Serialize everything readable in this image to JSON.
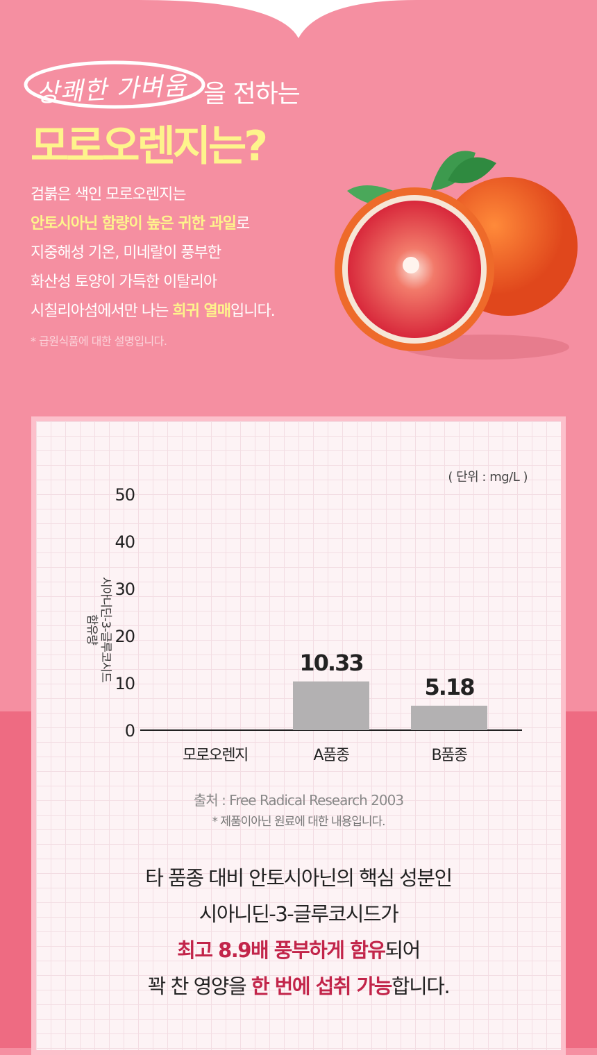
{
  "header": {
    "script_phrase": "상쾌한 가벼움",
    "subtitle_suffix": "을 전하는",
    "title": "모로오렌지는?"
  },
  "description": {
    "line1": "검붉은 색인 모로오렌지는",
    "line2_highlight": "안토시아닌 함량이 높은 귀한 과일",
    "line2_rest": "로",
    "line3": "지중해성 기온, 미네랄이 풍부한",
    "line4": "화산성 토양이 가득한 이탈리아",
    "line5_start": "시칠리아섬에서만 나는 ",
    "line5_highlight": "희귀 열매",
    "line5_end": "입니다.",
    "note": "* 급원식품에 대한 설명입니다."
  },
  "chart_data": {
    "type": "bar",
    "unit_label": "( 단위 : mg/L )",
    "ylabel_line1": "시아니딘-3-글루코시드",
    "ylabel_line2": "함유량",
    "categories": [
      "모로오렌지",
      "A품종",
      "B품종"
    ],
    "values": [
      null,
      10.33,
      5.18
    ],
    "data_labels": [
      "",
      "10.33",
      "5.18"
    ],
    "yticks": [
      "0",
      "10",
      "20",
      "30",
      "40",
      "50"
    ],
    "ylim": [
      0,
      50
    ],
    "bar_color": "#b3b1b2",
    "grid": false
  },
  "source": "출처 : Free Radical Research 2003",
  "source_note": "* 제품이아닌 원료에 대한 내용입니다.",
  "summary": {
    "line1": "타 품종 대비 안토시아닌의 핵심 성분인",
    "line2": "시아니딘-3-글루코시드가",
    "line3_highlight": "최고 8.9배 풍부하게 함유",
    "line3_rest": "되어",
    "line4_start": "꽉 찬 영양을 ",
    "line4_highlight": "한 번에 섭취 가능",
    "line4_end": "합니다."
  },
  "colors": {
    "background": "#f58fa1",
    "bottom_band": "#ee6b82",
    "highlight_yellow": "#fef48c",
    "highlight_red": "#c2254a",
    "card_border": "#fcc0cb"
  }
}
